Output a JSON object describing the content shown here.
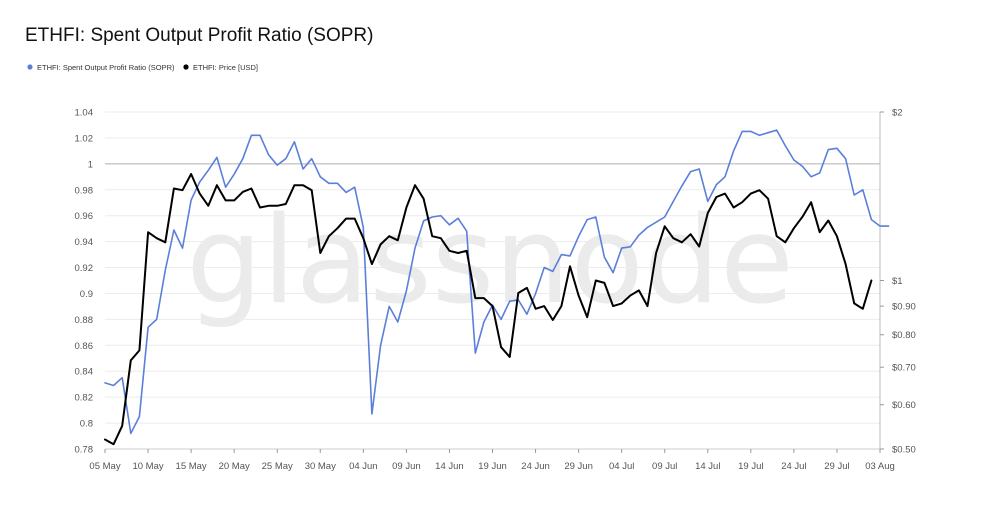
{
  "chart_data": {
    "type": "line",
    "title": "ETHFI: Spent Output Profit Ratio (SOPR)",
    "watermark": "glassnode",
    "legend_position": "top-left",
    "x_tick_labels": [
      "05 May",
      "10 May",
      "15 May",
      "20 May",
      "25 May",
      "30 May",
      "04 Jun",
      "09 Jun",
      "14 Jun",
      "19 Jun",
      "24 Jun",
      "29 Jun",
      "04 Jul",
      "09 Jul",
      "14 Jul",
      "19 Jul",
      "24 Jul",
      "29 Jul",
      "03 Aug"
    ],
    "x_domain_days": [
      0,
      90
    ],
    "left_axis": {
      "ticks": [
        "1.04",
        "1.02",
        "1",
        "0.98",
        "0.96",
        "0.94",
        "0.92",
        "0.9",
        "0.88",
        "0.86",
        "0.84",
        "0.82",
        "0.8",
        "0.78"
      ],
      "range": [
        0.78,
        1.04
      ],
      "reference_line": 1
    },
    "right_axis": {
      "scale": "log",
      "ticks": [
        {
          "value": 2,
          "label": "$2"
        },
        {
          "value": 1,
          "label": "$1"
        },
        {
          "value": 0.9,
          "label": "$0.90"
        },
        {
          "value": 0.8,
          "label": "$0.80"
        },
        {
          "value": 0.7,
          "label": "$0.70"
        },
        {
          "value": 0.6,
          "label": "$0.60"
        },
        {
          "value": 0.5,
          "label": "$0.50"
        }
      ],
      "range": [
        0.5,
        2
      ]
    },
    "series": [
      {
        "name": "ETHFI: Spent Output Profit Ratio (SOPR)",
        "axis": "left",
        "color": "#5b7fdb",
        "values": [
          0.831,
          0.829,
          0.835,
          0.792,
          0.805,
          0.874,
          0.88,
          0.918,
          0.949,
          0.935,
          0.972,
          0.986,
          0.995,
          1.005,
          0.982,
          0.992,
          1.004,
          1.022,
          1.022,
          1.007,
          0.999,
          1.004,
          1.017,
          0.996,
          1.004,
          0.99,
          0.985,
          0.985,
          0.978,
          0.982,
          0.951,
          0.807,
          0.86,
          0.89,
          0.878,
          0.902,
          0.935,
          0.956,
          0.959,
          0.96,
          0.953,
          0.958,
          0.948,
          0.854,
          0.878,
          0.891,
          0.88,
          0.894,
          0.895,
          0.884,
          0.9,
          0.92,
          0.917,
          0.93,
          0.929,
          0.944,
          0.957,
          0.959,
          0.928,
          0.916,
          0.935,
          0.936,
          0.945,
          0.951,
          0.955,
          0.959,
          0.971,
          0.983,
          0.994,
          0.996,
          0.971,
          0.984,
          0.99,
          1.01,
          1.025,
          1.025,
          1.022,
          1.024,
          1.026,
          1.014,
          1.003,
          0.998,
          0.99,
          0.993,
          1.011,
          1.012,
          1.004,
          0.976,
          0.98,
          0.957,
          0.952,
          0.952
        ]
      },
      {
        "name": "ETHFI: Price [USD]",
        "axis": "right",
        "color": "#000000",
        "values": [
          0.52,
          0.51,
          0.55,
          0.72,
          0.75,
          1.22,
          1.19,
          1.17,
          1.46,
          1.45,
          1.55,
          1.43,
          1.36,
          1.48,
          1.39,
          1.39,
          1.44,
          1.46,
          1.35,
          1.36,
          1.36,
          1.37,
          1.48,
          1.48,
          1.45,
          1.12,
          1.2,
          1.24,
          1.29,
          1.29,
          1.19,
          1.07,
          1.16,
          1.2,
          1.18,
          1.35,
          1.48,
          1.4,
          1.2,
          1.19,
          1.13,
          1.12,
          1.13,
          0.93,
          0.93,
          0.9,
          0.76,
          0.73,
          0.95,
          0.97,
          0.89,
          0.9,
          0.85,
          0.9,
          1.06,
          0.94,
          0.86,
          1.0,
          0.99,
          0.9,
          0.91,
          0.94,
          0.96,
          0.9,
          1.12,
          1.25,
          1.19,
          1.17,
          1.21,
          1.15,
          1.32,
          1.41,
          1.43,
          1.35,
          1.38,
          1.43,
          1.45,
          1.4,
          1.2,
          1.17,
          1.24,
          1.3,
          1.38,
          1.22,
          1.28,
          1.2,
          1.07,
          0.91,
          0.89,
          1.0
        ]
      }
    ]
  }
}
